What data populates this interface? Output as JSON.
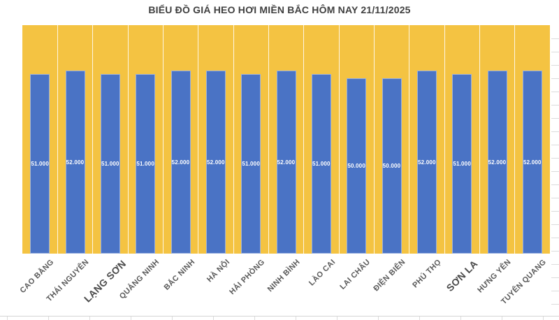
{
  "chart_data": {
    "type": "bar",
    "title": "BIỂU ĐỒ GIÁ HEO HƠI MIỀN BẮC HÔM NAY 21/11/2025",
    "categories": [
      "CAO BẰNG",
      "THÁI NGUYÊN",
      "LẠNG SƠN",
      "QUẢNG NINH",
      "BẮC NINH",
      "HÀ NỘI",
      "HẢI PHÒNG",
      "NINH BÌNH",
      "LÀO CAI",
      "LAI CHÂU",
      "ĐIỆN BIÊN",
      "PHÚ THỌ",
      "SƠN LA",
      "HƯNG YÊN",
      "TUYÊN QUANG"
    ],
    "values": [
      51000,
      52000,
      51000,
      51000,
      52000,
      52000,
      51000,
      52000,
      51000,
      50000,
      50000,
      52000,
      51000,
      52000,
      52000
    ],
    "value_labels": [
      "51.000",
      "52.000",
      "51.000",
      "51.000",
      "52.000",
      "52.000",
      "51.000",
      "52.000",
      "51.000",
      "50.000",
      "50.000",
      "52.000",
      "51.000",
      "52.000",
      "52.000"
    ],
    "emphasized_categories": [
      "LẠNG SƠN",
      "SƠN LA"
    ],
    "xlabel": "",
    "ylabel": "",
    "ylim": [
      0,
      65000
    ],
    "legend": "none",
    "grid": "vertical category separators only",
    "value_label_position": "center of bar",
    "category_label_rotation_deg": 45,
    "colors": {
      "bar_fill": "#4a73c5",
      "plot_background": "#f4c342",
      "value_label": "#ffffff",
      "category_label": "#595959",
      "title": "#3f3f3f"
    }
  }
}
